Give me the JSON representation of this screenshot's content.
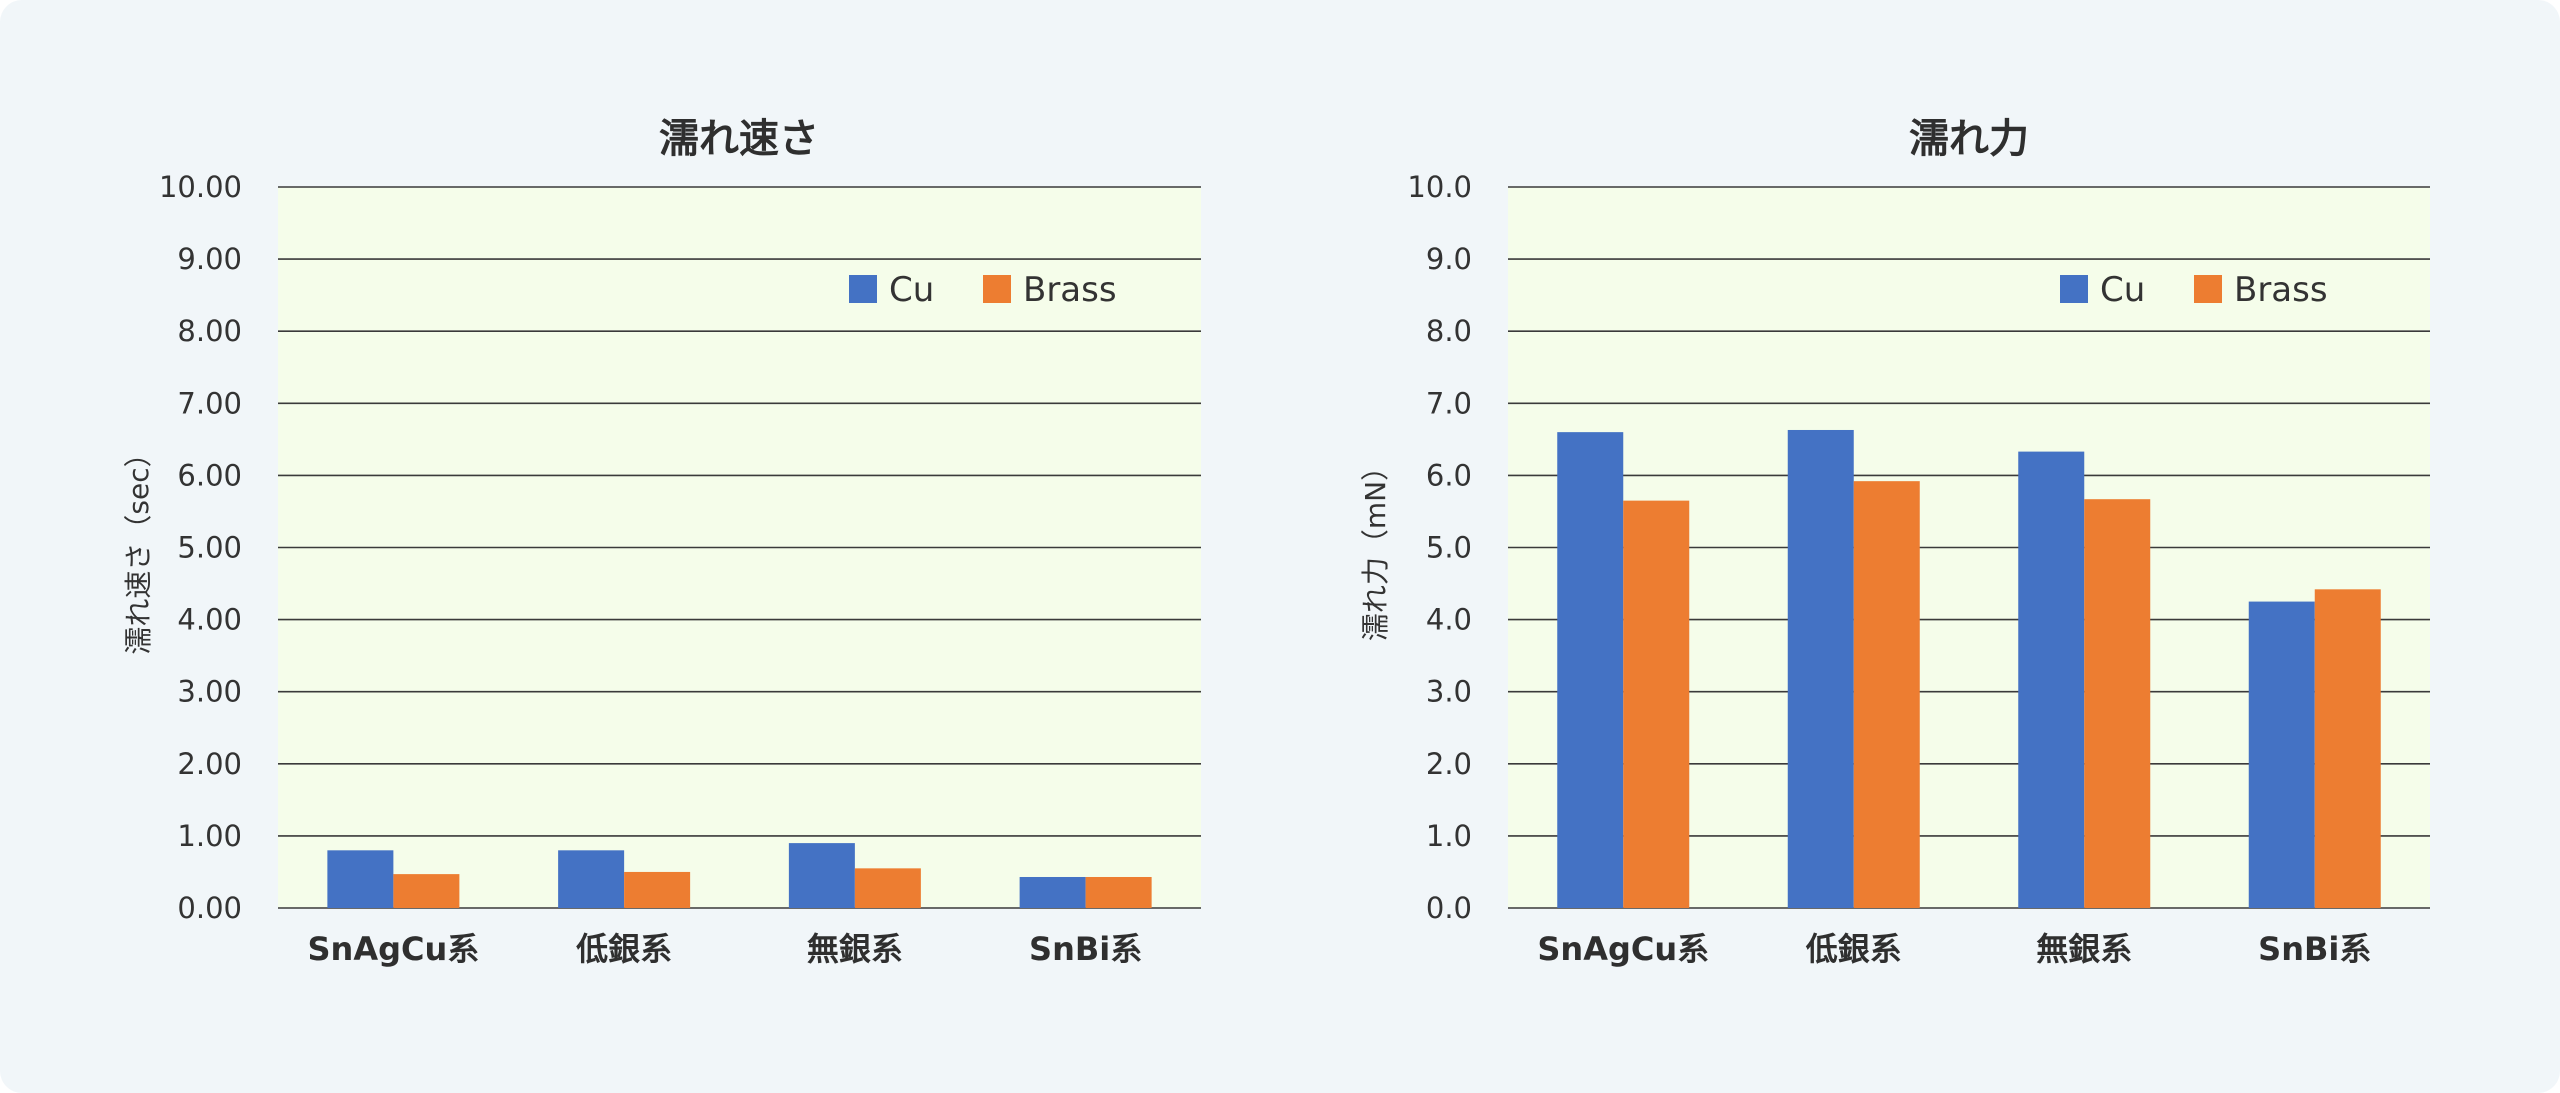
{
  "chart_data": [
    {
      "type": "bar",
      "title": "濡れ速さ",
      "ylabel": "濡れ速さ（sec）",
      "xlabel": "",
      "categories": [
        "SnAgCu系",
        "低銀系",
        "無銀系",
        "SnBi系"
      ],
      "series": [
        {
          "name": "Cu",
          "color": "#4472c4",
          "values": [
            0.8,
            0.8,
            0.9,
            0.43
          ]
        },
        {
          "name": "Brass",
          "color": "#ed7d31",
          "values": [
            0.47,
            0.5,
            0.55,
            0.43
          ]
        }
      ],
      "ylim": [
        0,
        10
      ],
      "yticks": [
        "0.00",
        "1.00",
        "2.00",
        "3.00",
        "4.00",
        "5.00",
        "6.00",
        "7.00",
        "8.00",
        "9.00",
        "10.00"
      ],
      "grid": true,
      "legend": "top-right",
      "plot_background": "#f5fdea"
    },
    {
      "type": "bar",
      "title": "濡れ力",
      "ylabel": "濡れ力（mN）",
      "xlabel": "",
      "categories": [
        "SnAgCu系",
        "低銀系",
        "無銀系",
        "SnBi系"
      ],
      "series": [
        {
          "name": "Cu",
          "color": "#4472c4",
          "values": [
            6.6,
            6.63,
            6.33,
            4.25
          ]
        },
        {
          "name": "Brass",
          "color": "#ed7d31",
          "values": [
            5.65,
            5.92,
            5.67,
            4.42
          ]
        }
      ],
      "ylim": [
        0,
        10
      ],
      "yticks": [
        "0.0",
        "1.0",
        "2.0",
        "3.0",
        "4.0",
        "5.0",
        "6.0",
        "7.0",
        "8.0",
        "9.0",
        "10.0"
      ],
      "grid": true,
      "legend": "top-right",
      "plot_background": "#f5fdea"
    }
  ]
}
